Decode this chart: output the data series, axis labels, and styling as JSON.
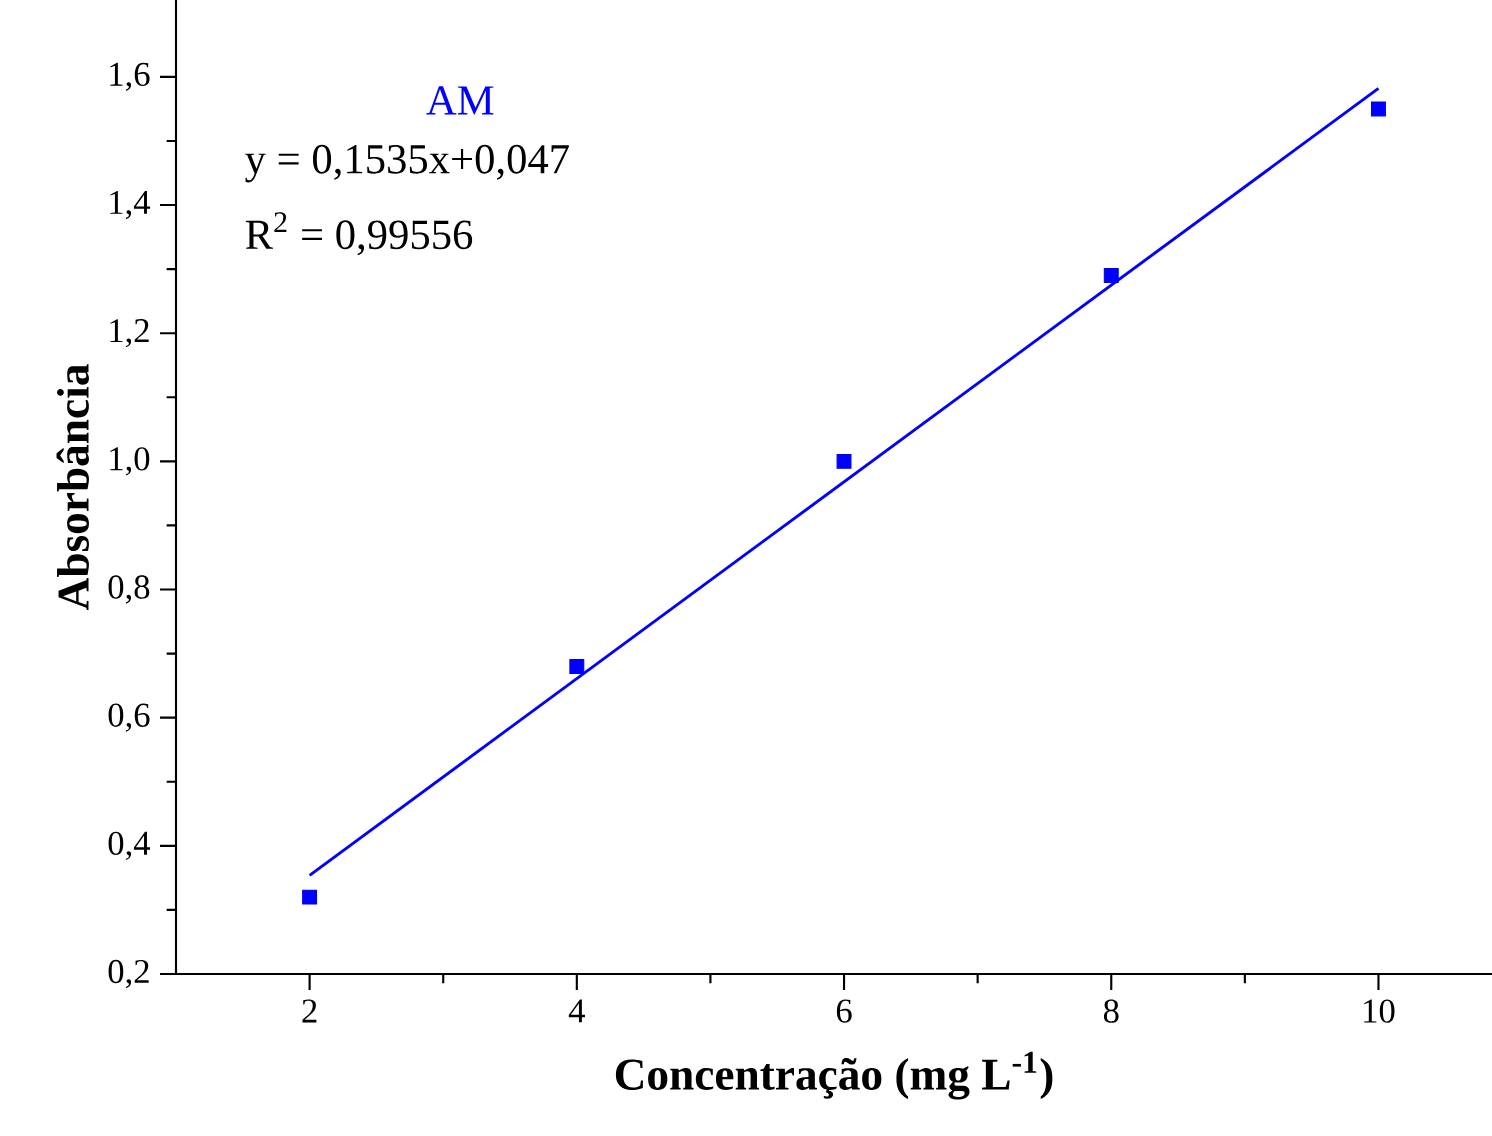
{
  "chart_data": {
    "type": "scatter",
    "xlabel": "Concentração (mg L$^{-1}$)",
    "ylabel": "Absorbância",
    "x": [
      2,
      4,
      6,
      8,
      10
    ],
    "series": [
      {
        "name": "AM",
        "color": "#0000ff",
        "marker": "square",
        "values": [
          0.32,
          0.68,
          1.0,
          1.29,
          1.55
        ]
      },
      {
        "type": "line",
        "color": "#0000ff",
        "x": [
          2,
          10
        ],
        "values": [
          0.354,
          1.582
        ],
        "line_style": "solid"
      }
    ],
    "annotations": [
      "y = 0,1535x+0,047",
      "R$^{2}$ = 0,99556"
    ],
    "xlim": [
      1,
      10.85
    ],
    "ylim": [
      0.2,
      1.72
    ],
    "xticks": [
      2,
      4,
      6,
      8,
      10
    ],
    "yticks": [
      {
        "value": 0.2,
        "label": "0,2"
      },
      {
        "value": 0.4,
        "label": "0,4"
      },
      {
        "value": 0.6,
        "label": "0,6"
      },
      {
        "value": 0.8,
        "label": "0,8"
      },
      {
        "value": 1.0,
        "label": "1,0"
      },
      {
        "value": 1.2,
        "label": "1,2"
      },
      {
        "value": 1.4,
        "label": "1,4"
      },
      {
        "value": 1.6,
        "label": "1,6"
      }
    ],
    "grid": false
  }
}
